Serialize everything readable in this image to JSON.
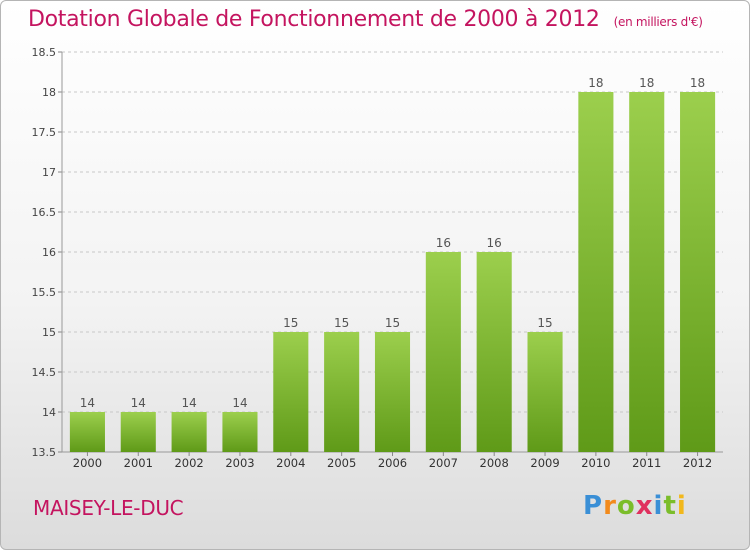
{
  "header": {
    "title": "Dotation Globale de Fonctionnement de 2000 à 2012",
    "unit": "(en milliers d'€)"
  },
  "footer": {
    "commune": "MAISEY-LE-DUC",
    "logo_letters": [
      "P",
      "r",
      "o",
      "x",
      "i",
      "t",
      "i"
    ]
  },
  "colors": {
    "title": "#c4145f",
    "bar_top": "#9ccf4d",
    "bar_bottom": "#5f9a18",
    "grid": "#c8c8c8"
  },
  "chart_data": {
    "type": "bar",
    "title": "Dotation Globale de Fonctionnement de 2000 à 2012",
    "subtitle": "(en milliers d'€)",
    "xlabel": "",
    "ylabel": "",
    "categories": [
      "2000",
      "2001",
      "2002",
      "2003",
      "2004",
      "2005",
      "2006",
      "2007",
      "2008",
      "2009",
      "2010",
      "2011",
      "2012"
    ],
    "values": [
      14,
      14,
      14,
      14,
      15,
      15,
      15,
      16,
      16,
      15,
      18,
      18,
      18
    ],
    "data_labels": [
      "14",
      "14",
      "14",
      "14",
      "15",
      "15",
      "15",
      "16",
      "16",
      "15",
      "18",
      "18",
      "18"
    ],
    "ylim": [
      13.5,
      18.5
    ],
    "yticks": [
      13.5,
      14,
      14.5,
      15,
      15.5,
      16,
      16.5,
      17,
      17.5,
      18,
      18.5
    ],
    "ytick_labels": [
      "13.5",
      "14",
      "14.5",
      "15",
      "15.5",
      "16",
      "16.5",
      "17",
      "17.5",
      "18",
      "18.5"
    ],
    "grid": true,
    "legend": "none"
  }
}
